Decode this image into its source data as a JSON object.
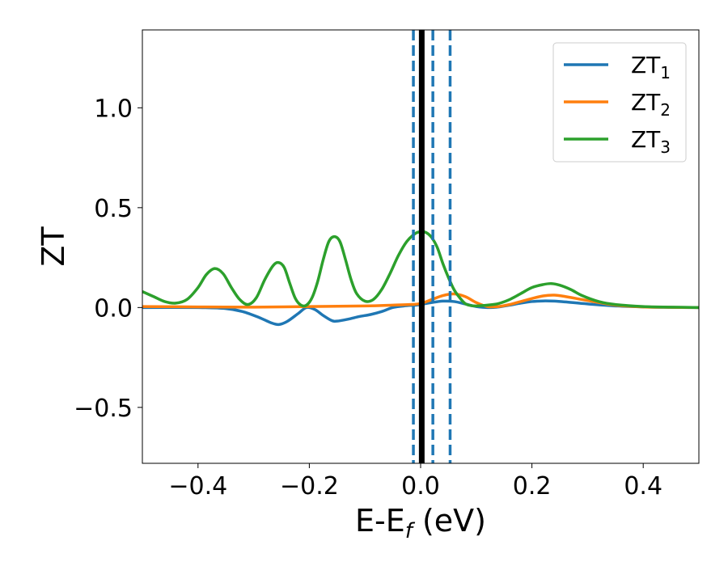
{
  "chart_data": {
    "type": "line",
    "xlabel": "E-E",
    "xlabel_sub": "f",
    "xlabel_unit": " (eV)",
    "ylabel": "ZT",
    "xlim": [
      -0.5,
      0.5
    ],
    "ylim": [
      -0.78,
      1.39
    ],
    "x_ticks": [
      -0.4,
      -0.2,
      0.0,
      0.2,
      0.4
    ],
    "x_tick_labels": [
      "−0.4",
      "−0.2",
      "0.0",
      "0.2",
      "0.4"
    ],
    "y_ticks": [
      -0.5,
      0.0,
      0.5,
      1.0
    ],
    "y_tick_labels": [
      "−0.5",
      "0.0",
      "0.5",
      "1.0"
    ],
    "grid": false,
    "legend_position": "top-right",
    "colors": {
      "ZT1": "#1f77b4",
      "ZT2": "#ff7f0e",
      "ZT3": "#2ca02c",
      "fermi_line": "#000000",
      "dashed_lines": "#1f77b4"
    },
    "vertical_lines": [
      {
        "x": 0.002,
        "style": "solid",
        "color": "#000000"
      },
      {
        "x": -0.013,
        "style": "dashed",
        "color": "#1f77b4"
      },
      {
        "x": 0.022,
        "style": "dashed",
        "color": "#1f77b4"
      },
      {
        "x": 0.053,
        "style": "dashed",
        "color": "#1f77b4"
      }
    ],
    "series": [
      {
        "name": "ZT",
        "name_sub": "1",
        "color": "#1f77b4",
        "x": [
          -0.5,
          -0.4,
          -0.35,
          -0.32,
          -0.29,
          -0.27,
          -0.255,
          -0.24,
          -0.22,
          -0.205,
          -0.19,
          -0.175,
          -0.16,
          -0.15,
          -0.13,
          -0.11,
          -0.09,
          -0.07,
          -0.05,
          -0.03,
          -0.01,
          0.0,
          0.02,
          0.04,
          0.06,
          0.08,
          0.1,
          0.12,
          0.14,
          0.16,
          0.18,
          0.2,
          0.22,
          0.24,
          0.26,
          0.3,
          0.35,
          0.4,
          0.45,
          0.5
        ],
        "y": [
          0.0,
          0.0,
          -0.005,
          -0.02,
          -0.05,
          -0.075,
          -0.085,
          -0.07,
          -0.03,
          0.0,
          -0.01,
          -0.04,
          -0.065,
          -0.068,
          -0.058,
          -0.045,
          -0.035,
          -0.02,
          0.0,
          0.008,
          0.012,
          0.015,
          0.025,
          0.032,
          0.03,
          0.018,
          0.005,
          0.0,
          0.003,
          0.012,
          0.022,
          0.03,
          0.033,
          0.032,
          0.028,
          0.018,
          0.008,
          0.003,
          0.001,
          0.0
        ]
      },
      {
        "name": "ZT",
        "name_sub": "2",
        "color": "#ff7f0e",
        "x": [
          -0.5,
          -0.4,
          -0.3,
          -0.2,
          -0.1,
          -0.05,
          -0.02,
          0.0,
          0.02,
          0.04,
          0.06,
          0.08,
          0.1,
          0.12,
          0.14,
          0.16,
          0.18,
          0.2,
          0.22,
          0.24,
          0.26,
          0.3,
          0.35,
          0.4,
          0.45,
          0.5
        ],
        "y": [
          0.005,
          0.003,
          0.002,
          0.005,
          0.008,
          0.012,
          0.015,
          0.02,
          0.04,
          0.06,
          0.068,
          0.055,
          0.025,
          0.005,
          0.005,
          0.015,
          0.03,
          0.045,
          0.058,
          0.062,
          0.055,
          0.035,
          0.012,
          0.003,
          0.001,
          0.0
        ]
      },
      {
        "name": "ZT",
        "name_sub": "3",
        "color": "#2ca02c",
        "x": [
          -0.5,
          -0.48,
          -0.46,
          -0.44,
          -0.42,
          -0.4,
          -0.385,
          -0.37,
          -0.355,
          -0.34,
          -0.325,
          -0.31,
          -0.295,
          -0.28,
          -0.265,
          -0.255,
          -0.245,
          -0.235,
          -0.225,
          -0.215,
          -0.205,
          -0.195,
          -0.185,
          -0.175,
          -0.165,
          -0.155,
          -0.145,
          -0.135,
          -0.125,
          -0.115,
          -0.1,
          -0.085,
          -0.07,
          -0.055,
          -0.04,
          -0.025,
          -0.01,
          0.0,
          0.01,
          0.02,
          0.03,
          0.04,
          0.05,
          0.06,
          0.07,
          0.08,
          0.09,
          0.1,
          0.12,
          0.14,
          0.16,
          0.18,
          0.2,
          0.22,
          0.235,
          0.25,
          0.27,
          0.29,
          0.32,
          0.35,
          0.4,
          0.45,
          0.5
        ],
        "y": [
          0.08,
          0.055,
          0.03,
          0.022,
          0.04,
          0.1,
          0.165,
          0.195,
          0.17,
          0.1,
          0.04,
          0.015,
          0.05,
          0.14,
          0.21,
          0.225,
          0.2,
          0.12,
          0.045,
          0.012,
          0.012,
          0.05,
          0.13,
          0.24,
          0.33,
          0.355,
          0.33,
          0.24,
          0.14,
          0.07,
          0.032,
          0.04,
          0.09,
          0.17,
          0.26,
          0.33,
          0.37,
          0.38,
          0.375,
          0.35,
          0.3,
          0.22,
          0.15,
          0.09,
          0.05,
          0.02,
          0.01,
          0.008,
          0.012,
          0.02,
          0.04,
          0.07,
          0.1,
          0.115,
          0.12,
          0.112,
          0.09,
          0.06,
          0.03,
          0.015,
          0.005,
          0.002,
          0.0
        ]
      }
    ]
  }
}
